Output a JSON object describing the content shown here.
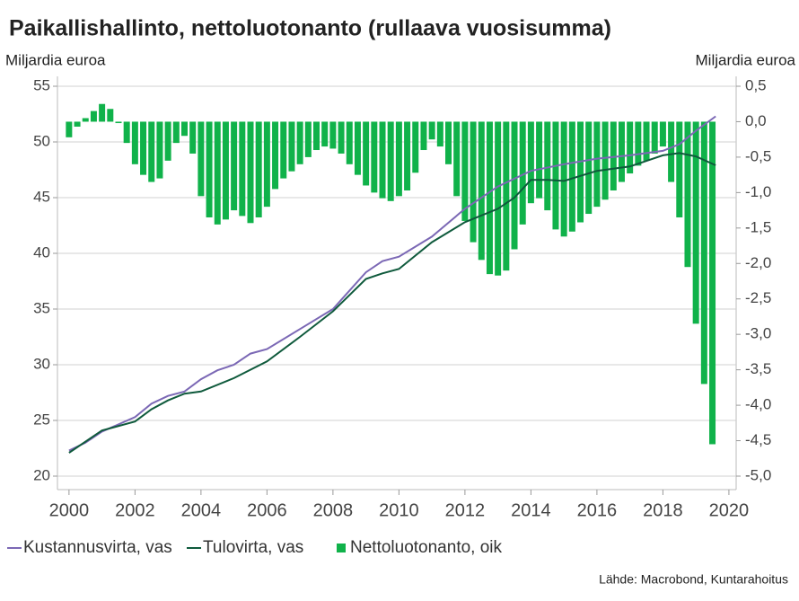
{
  "chart_data": {
    "type": "bar-line",
    "title": "Paikallishallinto, nettoluotonanto (rullaava vuosisumma)",
    "ylabel": "Miljardia euroa",
    "y2label": "Miljardia euroa",
    "source": "Lähde: Macrobond, Kuntarahoitus",
    "xlim": [
      1999.65,
      2020.22
    ],
    "xticks": [
      2000,
      2002,
      2004,
      2006,
      2008,
      2010,
      2012,
      2014,
      2016,
      2018,
      2020
    ],
    "ylim": [
      20,
      55
    ],
    "yticks": [
      20,
      25,
      30,
      35,
      40,
      45,
      50,
      55
    ],
    "y2lim": [
      -5.0,
      0.5
    ],
    "y2ticks": [
      {
        "value": 0.5,
        "label": "0,5"
      },
      {
        "value": 0,
        "label": "0,0"
      },
      {
        "value": -0.5,
        "label": "-0,5"
      },
      {
        "value": -1.0,
        "label": "-1,0"
      },
      {
        "value": -1.5,
        "label": "-1,5"
      },
      {
        "value": -2.0,
        "label": "-2,0"
      },
      {
        "value": -2.5,
        "label": "-2,5"
      },
      {
        "value": -3.0,
        "label": "-3,0"
      },
      {
        "value": -3.5,
        "label": "-3,5"
      },
      {
        "value": -4.0,
        "label": "-4,0"
      },
      {
        "value": -4.5,
        "label": "-4,5"
      },
      {
        "value": -5.0,
        "label": "-5,0"
      }
    ],
    "grid": true,
    "legend": "bottom",
    "series": [
      {
        "name": "Kustannusvirta, vas",
        "kind": "line",
        "color": "#7b68b5",
        "x": [
          2000,
          2000.5,
          2001,
          2002,
          2002.5,
          2003,
          2003.5,
          2004,
          2004.5,
          2005,
          2005.5,
          2006,
          2007,
          2008,
          2009,
          2009.5,
          2010,
          2011,
          2012,
          2013,
          2013.5,
          2014,
          2015,
          2016,
          2017,
          2018,
          2018.5,
          2019,
          2019.6
        ],
        "values": [
          22.3,
          23.0,
          24.0,
          25.3,
          26.5,
          27.2,
          27.6,
          28.7,
          29.5,
          30.0,
          31.0,
          31.4,
          33.2,
          35.0,
          38.3,
          39.3,
          39.7,
          41.5,
          44.0,
          46.0,
          46.7,
          47.4,
          48.0,
          48.5,
          48.8,
          49.2,
          49.8,
          51.0,
          52.3
        ]
      },
      {
        "name": "Tulovirta, vas",
        "kind": "line",
        "color": "#0f5a3c",
        "x": [
          2000,
          2001,
          2002,
          2002.5,
          2003,
          2003.5,
          2004,
          2005,
          2006,
          2007,
          2008,
          2009,
          2009.5,
          2010,
          2011,
          2012,
          2013,
          2013.5,
          2014,
          2014.5,
          2015,
          2016,
          2017,
          2018,
          2018.5,
          2019,
          2019.6
        ],
        "values": [
          22.1,
          24.1,
          24.9,
          26.0,
          26.8,
          27.4,
          27.6,
          28.8,
          30.3,
          32.5,
          34.8,
          37.7,
          38.2,
          38.6,
          41.0,
          42.8,
          44.0,
          45.0,
          46.6,
          46.6,
          46.5,
          47.4,
          47.8,
          48.8,
          49.0,
          48.7,
          47.9
        ]
      },
      {
        "name": "Nettoluotonanto, oik",
        "kind": "bar",
        "axis": "y2",
        "color": "#10b24a",
        "x": [
          2000,
          2000.25,
          2000.5,
          2000.75,
          2001,
          2001.25,
          2001.5,
          2001.75,
          2002,
          2002.25,
          2002.5,
          2002.75,
          2003,
          2003.25,
          2003.5,
          2003.75,
          2004,
          2004.25,
          2004.5,
          2004.75,
          2005,
          2005.25,
          2005.5,
          2005.75,
          2006,
          2006.25,
          2006.5,
          2006.75,
          2007,
          2007.25,
          2007.5,
          2007.75,
          2008,
          2008.25,
          2008.5,
          2008.75,
          2009,
          2009.25,
          2009.5,
          2009.75,
          2010,
          2010.25,
          2010.5,
          2010.75,
          2011,
          2011.25,
          2011.5,
          2011.75,
          2012,
          2012.25,
          2012.5,
          2012.75,
          2013,
          2013.25,
          2013.5,
          2013.75,
          2014,
          2014.25,
          2014.5,
          2014.75,
          2015,
          2015.25,
          2015.5,
          2015.75,
          2016,
          2016.25,
          2016.5,
          2016.75,
          2017,
          2017.25,
          2017.5,
          2017.75,
          2018,
          2018.25,
          2018.5,
          2018.75,
          2019,
          2019.25,
          2019.5
        ],
        "values": [
          -0.22,
          -0.07,
          0.05,
          0.15,
          0.25,
          0.18,
          -0.02,
          -0.3,
          -0.6,
          -0.75,
          -0.85,
          -0.8,
          -0.55,
          -0.3,
          -0.2,
          -0.45,
          -1.05,
          -1.35,
          -1.45,
          -1.38,
          -1.25,
          -1.33,
          -1.43,
          -1.35,
          -1.2,
          -0.95,
          -0.8,
          -0.7,
          -0.6,
          -0.5,
          -0.4,
          -0.35,
          -0.38,
          -0.45,
          -0.6,
          -0.75,
          -0.9,
          -1.0,
          -1.08,
          -1.12,
          -1.05,
          -0.97,
          -0.72,
          -0.4,
          -0.25,
          -0.35,
          -0.6,
          -1.05,
          -1.4,
          -1.7,
          -1.95,
          -2.15,
          -2.17,
          -2.1,
          -1.8,
          -1.45,
          -1.15,
          -1.08,
          -1.25,
          -1.52,
          -1.62,
          -1.55,
          -1.42,
          -1.3,
          -1.2,
          -1.1,
          -0.97,
          -0.85,
          -0.73,
          -0.62,
          -0.55,
          -0.45,
          -0.35,
          -0.85,
          -1.35,
          -2.05,
          -2.85,
          -3.7,
          -4.55
        ]
      }
    ]
  }
}
